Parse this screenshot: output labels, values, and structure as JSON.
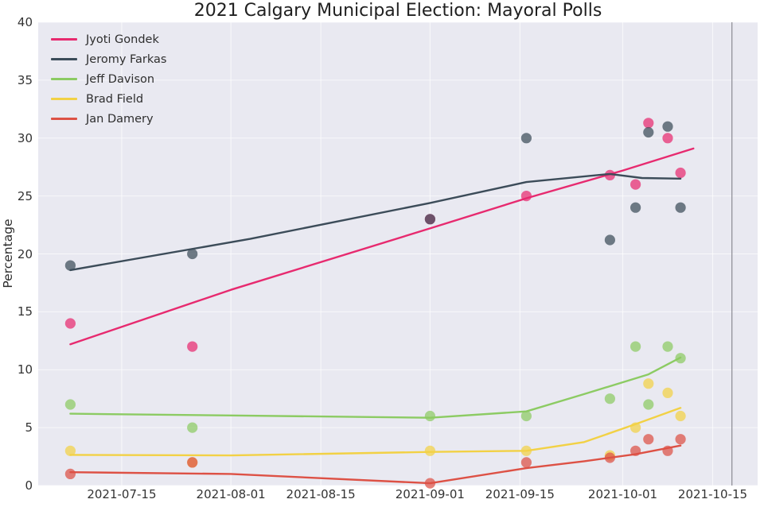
{
  "chart_data": {
    "type": "scatter",
    "title": "2021 Calgary Municipal Election: Mayoral Polls",
    "ylabel": "Percentage",
    "xlabel": "",
    "ylim": [
      0,
      40
    ],
    "y_ticks": [
      0,
      5,
      10,
      15,
      20,
      25,
      30,
      35,
      40
    ],
    "x_ticks": [
      "2021-07-15",
      "2021-08-01",
      "2021-08-15",
      "2021-09-01",
      "2021-09-15",
      "2021-10-01",
      "2021-10-15"
    ],
    "x_domain": [
      "2021-07-02",
      "2021-10-22"
    ],
    "election_day_line": "2021-10-18",
    "grid": true,
    "legend_position": "upper left",
    "series": [
      {
        "name": "Jyoti Gondek",
        "color": "#e72a6f",
        "points": [
          [
            "2021-07-07",
            14
          ],
          [
            "2021-07-26",
            12
          ],
          [
            "2021-09-01",
            23
          ],
          [
            "2021-09-16",
            25
          ],
          [
            "2021-09-29",
            26.8
          ],
          [
            "2021-10-03",
            26
          ],
          [
            "2021-10-05",
            31.3
          ],
          [
            "2021-10-08",
            30
          ],
          [
            "2021-10-10",
            27
          ]
        ],
        "trend": [
          [
            "2021-07-07",
            12.2
          ],
          [
            "2021-08-01",
            16.9
          ],
          [
            "2021-09-01",
            22.2
          ],
          [
            "2021-09-16",
            24.8
          ],
          [
            "2021-10-01",
            27.2
          ],
          [
            "2021-10-12",
            29.1
          ]
        ]
      },
      {
        "name": "Jeromy Farkas",
        "color": "#3c4c59",
        "points": [
          [
            "2021-07-07",
            19
          ],
          [
            "2021-07-26",
            20
          ],
          [
            "2021-09-01",
            23
          ],
          [
            "2021-09-16",
            30
          ],
          [
            "2021-09-29",
            21.2
          ],
          [
            "2021-10-03",
            24
          ],
          [
            "2021-10-05",
            30.5
          ],
          [
            "2021-10-08",
            31
          ],
          [
            "2021-10-10",
            24
          ]
        ],
        "trend": [
          [
            "2021-07-07",
            18.6
          ],
          [
            "2021-08-04",
            21.3
          ],
          [
            "2021-09-01",
            24.4
          ],
          [
            "2021-09-16",
            26.2
          ],
          [
            "2021-09-29",
            26.9
          ],
          [
            "2021-10-04",
            26.55
          ],
          [
            "2021-10-10",
            26.5
          ]
        ]
      },
      {
        "name": "Jeff Davison",
        "color": "#8ccb63",
        "points": [
          [
            "2021-07-07",
            7
          ],
          [
            "2021-07-26",
            5
          ],
          [
            "2021-09-01",
            6
          ],
          [
            "2021-09-16",
            6
          ],
          [
            "2021-09-29",
            7.5
          ],
          [
            "2021-10-03",
            12
          ],
          [
            "2021-10-05",
            7
          ],
          [
            "2021-10-08",
            12
          ],
          [
            "2021-10-10",
            11
          ]
        ],
        "trend": [
          [
            "2021-07-07",
            6.2
          ],
          [
            "2021-08-01",
            6.05
          ],
          [
            "2021-09-01",
            5.85
          ],
          [
            "2021-09-16",
            6.4
          ],
          [
            "2021-09-25",
            7.9
          ],
          [
            "2021-10-05",
            9.6
          ],
          [
            "2021-10-10",
            11.05
          ]
        ]
      },
      {
        "name": "Brad Field",
        "color": "#f2d145",
        "points": [
          [
            "2021-07-07",
            3
          ],
          [
            "2021-07-26",
            2
          ],
          [
            "2021-09-01",
            3
          ],
          [
            "2021-09-16",
            3
          ],
          [
            "2021-09-29",
            2.6
          ],
          [
            "2021-10-03",
            5
          ],
          [
            "2021-10-05",
            8.8
          ],
          [
            "2021-10-08",
            8
          ],
          [
            "2021-10-10",
            6
          ]
        ],
        "trend": [
          [
            "2021-07-07",
            2.65
          ],
          [
            "2021-08-01",
            2.6
          ],
          [
            "2021-09-01",
            2.9
          ],
          [
            "2021-09-16",
            3.0
          ],
          [
            "2021-09-25",
            3.75
          ],
          [
            "2021-10-03",
            5.3
          ],
          [
            "2021-10-10",
            6.7
          ]
        ]
      },
      {
        "name": "Jan Damery",
        "color": "#dd5145",
        "points": [
          [
            "2021-07-07",
            1
          ],
          [
            "2021-07-26",
            2
          ],
          [
            "2021-09-01",
            0.2
          ],
          [
            "2021-09-16",
            2
          ],
          [
            "2021-09-29",
            2.4
          ],
          [
            "2021-10-03",
            3
          ],
          [
            "2021-10-05",
            4
          ],
          [
            "2021-10-08",
            3
          ],
          [
            "2021-10-10",
            4
          ]
        ],
        "trend": [
          [
            "2021-07-07",
            1.15
          ],
          [
            "2021-08-01",
            1.0
          ],
          [
            "2021-09-01",
            0.2
          ],
          [
            "2021-09-16",
            1.5
          ],
          [
            "2021-09-25",
            2.1
          ],
          [
            "2021-10-03",
            2.7
          ],
          [
            "2021-10-10",
            3.45
          ]
        ]
      }
    ],
    "colors": {
      "figure_bg": "#ffffff",
      "plot_bg": "#e9e9f1",
      "grid": "#ffffff",
      "election_line": "#8a8a92",
      "tick_text": "#333333",
      "title_text": "#1f1f1f"
    }
  }
}
